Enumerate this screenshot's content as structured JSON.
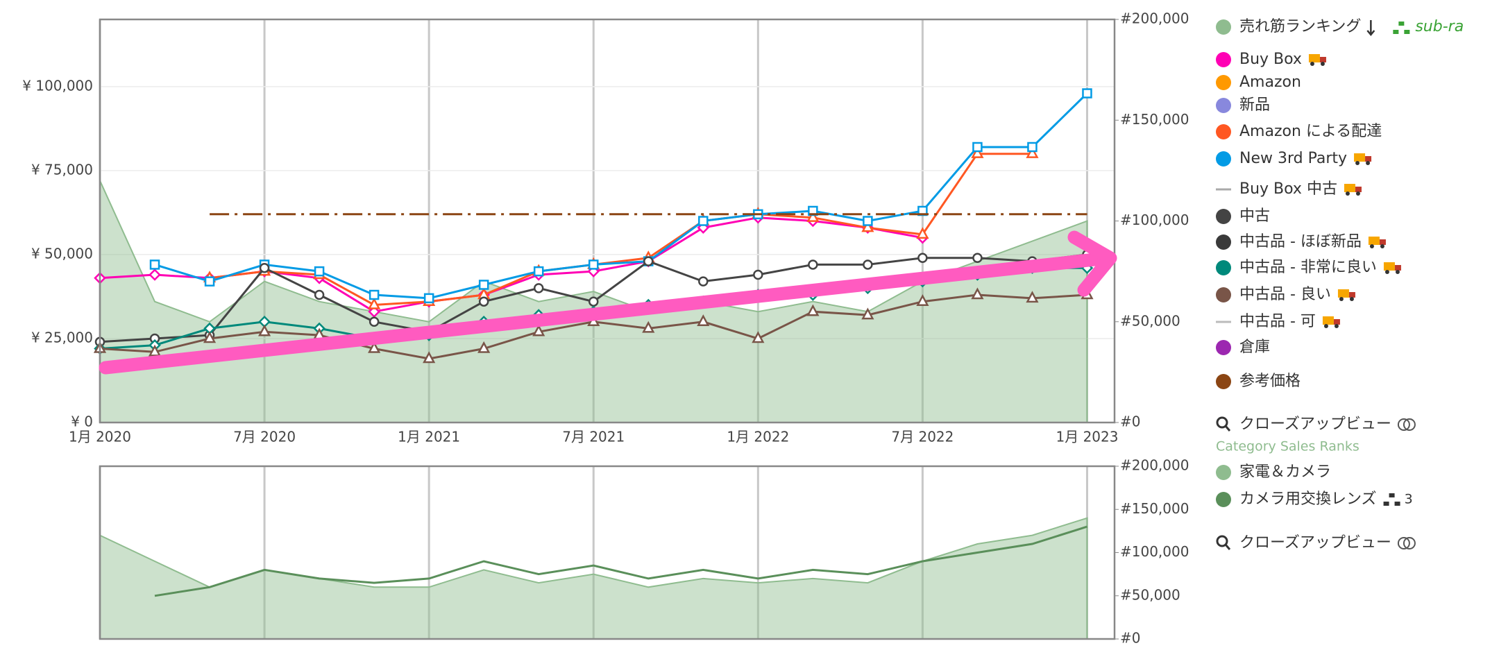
{
  "chart_data": [
    {
      "type": "line",
      "xlim": [
        "2020-01",
        "2023-02"
      ],
      "xticks": [
        {
          "value": "2020-01",
          "label": "1月 2020"
        },
        {
          "value": "2020-07",
          "label": "7月 2020"
        },
        {
          "value": "2021-01",
          "label": "1月 2021"
        },
        {
          "value": "2021-07",
          "label": "7月 2021"
        },
        {
          "value": "2022-01",
          "label": "1月 2022"
        },
        {
          "value": "2022-07",
          "label": "7月 2022"
        },
        {
          "value": "2023-01",
          "label": "1月 2023"
        }
      ],
      "ylim": [
        0,
        120000
      ],
      "yticks": [
        {
          "value": 0,
          "label": "¥ 0"
        },
        {
          "value": 25000,
          "label": "¥ 25,000"
        },
        {
          "value": 50000,
          "label": "¥ 50,000"
        },
        {
          "value": 75000,
          "label": "¥ 75,000"
        },
        {
          "value": 100000,
          "label": "¥ 100,000"
        }
      ],
      "y2lim": [
        0,
        200000
      ],
      "y2ticks": [
        {
          "value": 0,
          "label": "#0"
        },
        {
          "value": 50000,
          "label": "#50,000"
        },
        {
          "value": 100000,
          "label": "#100,000"
        },
        {
          "value": 150000,
          "label": "#150,000"
        },
        {
          "value": 200000,
          "label": "#200,000"
        }
      ],
      "grid": true,
      "x": [
        "2020-01",
        "2020-03",
        "2020-05",
        "2020-07",
        "2020-09",
        "2020-11",
        "2021-01",
        "2021-03",
        "2021-05",
        "2021-07",
        "2021-09",
        "2021-11",
        "2022-01",
        "2022-03",
        "2022-05",
        "2022-07",
        "2022-09",
        "2022-11",
        "2023-01"
      ],
      "sub_ranks_label": "sub-ra",
      "closeup_label": "クローズアップビュー",
      "series": [
        {
          "name": "売れ筋ランキング",
          "color": "#8fbc8f",
          "axis": "y2",
          "fill": true,
          "values": [
            120000,
            60000,
            50000,
            70000,
            60000,
            55000,
            50000,
            70000,
            60000,
            65000,
            55000,
            60000,
            55000,
            60000,
            55000,
            70000,
            80000,
            90000,
            100000
          ]
        },
        {
          "name": "Buy Box",
          "color": "#ff00b4",
          "truck": true,
          "marker": "diamond",
          "values": [
            43000,
            44000,
            43000,
            45000,
            43000,
            33000,
            36000,
            38000,
            44000,
            45000,
            48000,
            58000,
            61000,
            60000,
            58000,
            55000,
            null,
            null,
            null
          ]
        },
        {
          "name": "Amazon",
          "color": "#ff9900",
          "values": [
            null,
            null,
            null,
            null,
            null,
            null,
            null,
            null,
            null,
            null,
            null,
            null,
            null,
            null,
            null,
            null,
            null,
            null,
            null
          ]
        },
        {
          "name": "新品",
          "color": "#8888dd",
          "values": [
            null,
            null,
            null,
            null,
            null,
            null,
            null,
            null,
            null,
            null,
            null,
            null,
            null,
            null,
            null,
            null,
            null,
            null,
            null
          ]
        },
        {
          "name": "Amazon による配達",
          "color": "#ff5722",
          "marker": "triangle",
          "values": [
            null,
            null,
            43000,
            45000,
            44000,
            35000,
            36000,
            38000,
            45000,
            47000,
            49000,
            60000,
            62000,
            61000,
            58000,
            56000,
            80000,
            80000,
            null
          ]
        },
        {
          "name": "New 3rd Party",
          "color": "#039be5",
          "truck": true,
          "marker": "square",
          "values": [
            null,
            47000,
            42000,
            47000,
            45000,
            38000,
            37000,
            41000,
            45000,
            47000,
            48000,
            60000,
            62000,
            63000,
            60000,
            63000,
            82000,
            82000,
            98000
          ]
        },
        {
          "name": "Buy Box 中古",
          "color": "#aaaaaa",
          "truck": true,
          "legend_symbol": "line",
          "values": [
            null,
            null,
            null,
            null,
            null,
            null,
            null,
            null,
            null,
            null,
            null,
            null,
            null,
            null,
            null,
            null,
            null,
            null,
            null
          ]
        },
        {
          "name": "中古",
          "color": "#444444",
          "marker": "circle",
          "values": [
            24000,
            25000,
            26000,
            46000,
            38000,
            30000,
            27000,
            36000,
            40000,
            36000,
            48000,
            42000,
            44000,
            47000,
            47000,
            49000,
            49000,
            48000,
            50000
          ]
        },
        {
          "name": "中古品 - ほぼ新品",
          "color": "#3a3a3a",
          "truck": true,
          "values": [
            null,
            null,
            null,
            null,
            null,
            null,
            null,
            null,
            null,
            null,
            null,
            null,
            null,
            null,
            null,
            null,
            null,
            null,
            null
          ]
        },
        {
          "name": "中古品 - 非常に良い",
          "color": "#00897b",
          "truck": true,
          "marker": "diamond",
          "values": [
            22000,
            23000,
            28000,
            30000,
            28000,
            25000,
            26000,
            30000,
            32000,
            33000,
            35000,
            36000,
            38000,
            38000,
            40000,
            42000,
            44000,
            46000,
            46000
          ]
        },
        {
          "name": "中古品 - 良い",
          "color": "#795548",
          "truck": true,
          "marker": "triangle",
          "values": [
            22000,
            21000,
            25000,
            27000,
            26000,
            22000,
            19000,
            22000,
            27000,
            30000,
            28000,
            30000,
            25000,
            33000,
            32000,
            36000,
            38000,
            37000,
            38000
          ]
        },
        {
          "name": "中古品 - 可",
          "color": "#bbbbbb",
          "truck": true,
          "legend_symbol": "line",
          "values": [
            null,
            null,
            null,
            null,
            null,
            null,
            null,
            null,
            null,
            null,
            null,
            null,
            null,
            null,
            null,
            null,
            null,
            null,
            null
          ]
        },
        {
          "name": "倉庫",
          "color": "#9c27b0",
          "values": [
            null,
            null,
            null,
            null,
            null,
            null,
            null,
            null,
            null,
            null,
            null,
            null,
            null,
            null,
            null,
            null,
            null,
            null,
            null
          ]
        },
        {
          "name": "参考価格",
          "color": "#8b4513",
          "dashed": true,
          "values": [
            null,
            null,
            62000,
            62000,
            62000,
            62000,
            62000,
            62000,
            62000,
            62000,
            62000,
            62000,
            62000,
            62000,
            62000,
            62000,
            62000,
            62000,
            62000
          ]
        }
      ]
    },
    {
      "type": "line",
      "heading": "Category Sales Ranks",
      "closeup_label": "クローズアップビュー",
      "xlim": [
        "2020-01",
        "2023-02"
      ],
      "xticks": [
        "2020-01",
        "2020-07",
        "2021-01",
        "2021-07",
        "2022-01",
        "2022-07",
        "2023-01"
      ],
      "y2lim": [
        0,
        200000
      ],
      "y2ticks": [
        {
          "value": 0,
          "label": "#0"
        },
        {
          "value": 50000,
          "label": "#50,000"
        },
        {
          "value": 100000,
          "label": "#100,000"
        },
        {
          "value": 150000,
          "label": "#150,000"
        },
        {
          "value": 200000,
          "label": "#200,000"
        }
      ],
      "x": [
        "2020-01",
        "2020-03",
        "2020-05",
        "2020-07",
        "2020-09",
        "2020-11",
        "2021-01",
        "2021-03",
        "2021-05",
        "2021-07",
        "2021-09",
        "2021-11",
        "2022-01",
        "2022-03",
        "2022-05",
        "2022-07",
        "2022-09",
        "2022-11",
        "2023-01"
      ],
      "series": [
        {
          "name": "家電＆カメラ",
          "color": "#8fbc8f",
          "axis": "y2",
          "fill": true,
          "values": [
            120000,
            90000,
            60000,
            80000,
            70000,
            60000,
            60000,
            80000,
            65000,
            75000,
            60000,
            70000,
            65000,
            70000,
            65000,
            90000,
            110000,
            120000,
            140000
          ]
        },
        {
          "name": "カメラ用交換レンズ",
          "color": "#5a8f5a",
          "axis": "y2",
          "badge": 3,
          "values": [
            null,
            50000,
            60000,
            80000,
            70000,
            65000,
            70000,
            90000,
            75000,
            85000,
            70000,
            80000,
            70000,
            80000,
            75000,
            90000,
            100000,
            110000,
            130000
          ]
        }
      ]
    }
  ]
}
